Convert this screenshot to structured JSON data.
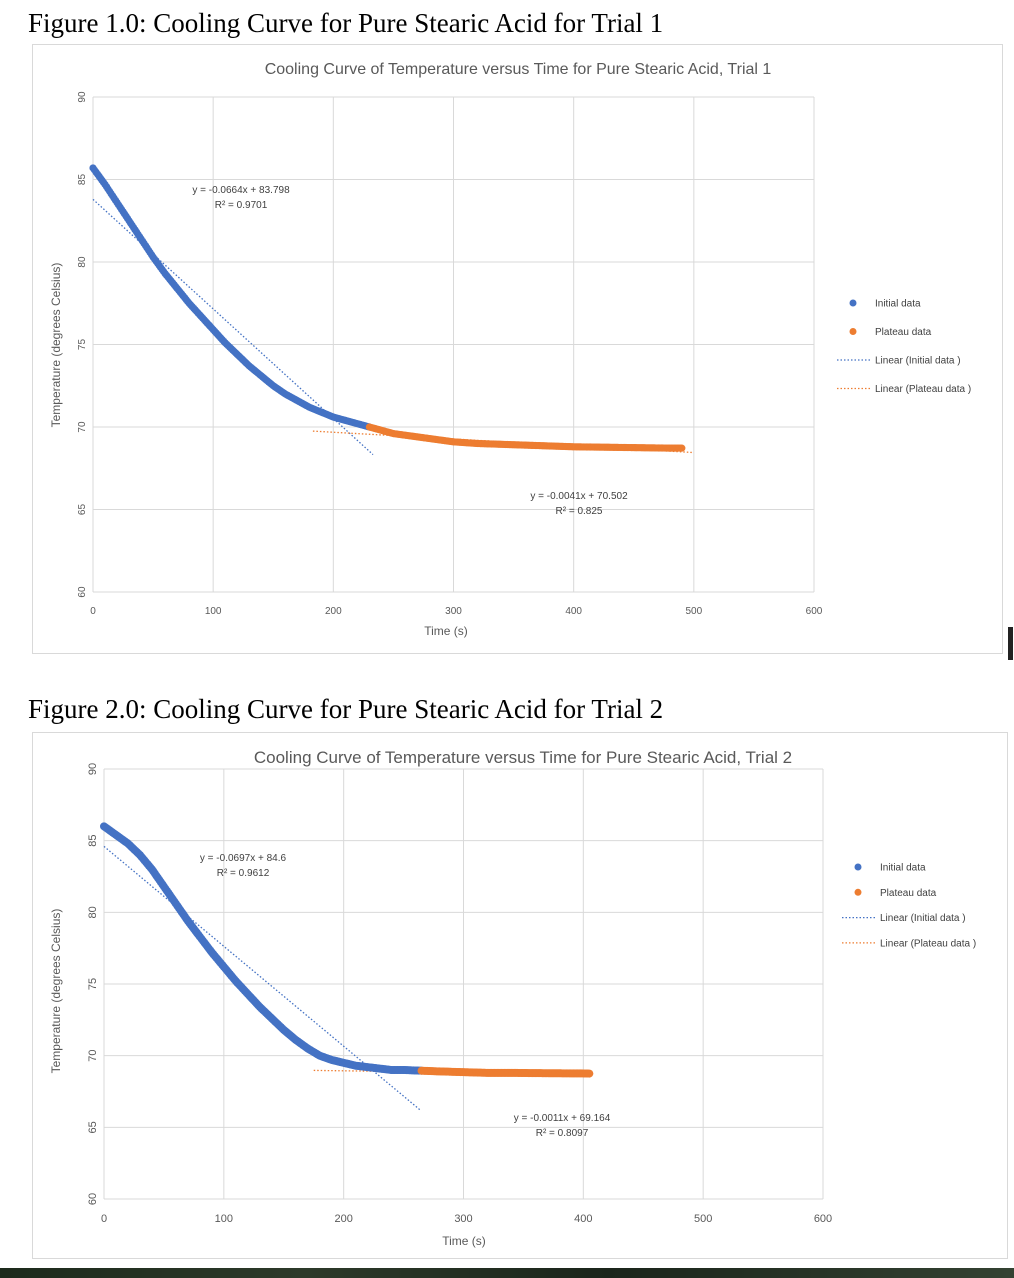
{
  "figures": [
    {
      "caption": "Figure 1.0: Cooling Curve for Pure Stearic Acid for Trial 1"
    },
    {
      "caption": "Figure 2.0: Cooling Curve for Pure Stearic Acid for Trial 2"
    }
  ],
  "chart_data": [
    {
      "type": "scatter",
      "title": "Cooling Curve of Temperature versus Time for Pure Stearic Acid, Trial 1",
      "xlabel": "Time (s)",
      "ylabel": "Temperature (degrees Celsius)",
      "xlim": [
        0,
        600
      ],
      "ylim": [
        60,
        90
      ],
      "xticks": [
        "0",
        "100",
        "200",
        "300",
        "400",
        "500",
        "600"
      ],
      "yticks": [
        "60",
        "65",
        "70",
        "75",
        "80",
        "85",
        "90"
      ],
      "grid": true,
      "legend_position": "right",
      "series": [
        {
          "name": "Initial data",
          "color": "#4472c4",
          "x": [
            0,
            10,
            20,
            30,
            40,
            50,
            60,
            70,
            80,
            90,
            100,
            110,
            120,
            130,
            140,
            150,
            160,
            170,
            180,
            190,
            200,
            210,
            220,
            230
          ],
          "y": [
            85.7,
            84.7,
            83.6,
            82.5,
            81.4,
            80.3,
            79.3,
            78.4,
            77.5,
            76.7,
            75.9,
            75.1,
            74.4,
            73.7,
            73.1,
            72.5,
            72.0,
            71.6,
            71.2,
            70.9,
            70.6,
            70.4,
            70.2,
            70.0
          ]
        },
        {
          "name": "Plateau data",
          "color": "#ed7d31",
          "x": [
            230,
            240,
            250,
            260,
            270,
            280,
            290,
            300,
            320,
            340,
            360,
            380,
            400,
            420,
            440,
            460,
            480,
            490
          ],
          "y": [
            70.0,
            69.8,
            69.6,
            69.5,
            69.4,
            69.3,
            69.2,
            69.1,
            69.0,
            68.95,
            68.9,
            68.85,
            68.8,
            68.78,
            68.76,
            68.74,
            68.72,
            68.72
          ]
        }
      ],
      "trendlines": [
        {
          "name": "Linear (Initial data )",
          "color": "#4472c4",
          "slope": -0.0664,
          "intercept": 83.798,
          "x_range": [
            0,
            233
          ],
          "equation": "y = -0.0664x + 83.798",
          "r2": "R² = 0.9701"
        },
        {
          "name": "Linear (Plateau data )",
          "color": "#ed7d31",
          "slope": -0.0041,
          "intercept": 70.502,
          "x_range": [
            183,
            500
          ],
          "equation": "y = -0.0041x + 70.502",
          "r2": "R² = 0.825"
        }
      ]
    },
    {
      "type": "scatter",
      "title": "Cooling Curve of Temperature versus Time for Pure Stearic Acid, Trial 2",
      "xlabel": "Time (s)",
      "ylabel": "Temperature (degrees Celsius)",
      "xlim": [
        0,
        600
      ],
      "ylim": [
        60,
        90
      ],
      "xticks": [
        "0",
        "100",
        "200",
        "300",
        "400",
        "500",
        "600"
      ],
      "yticks": [
        "60",
        "65",
        "70",
        "75",
        "80",
        "85",
        "90"
      ],
      "grid": true,
      "legend_position": "right",
      "series": [
        {
          "name": "Initial data",
          "color": "#4472c4",
          "x": [
            0,
            10,
            20,
            30,
            40,
            50,
            60,
            70,
            80,
            90,
            100,
            110,
            120,
            130,
            140,
            150,
            160,
            170,
            180,
            190,
            200,
            210,
            220,
            230,
            240,
            250,
            265
          ],
          "y": [
            86.0,
            85.4,
            84.8,
            84.0,
            83.0,
            81.8,
            80.6,
            79.4,
            78.3,
            77.2,
            76.2,
            75.2,
            74.3,
            73.4,
            72.6,
            71.8,
            71.1,
            70.5,
            70.0,
            69.7,
            69.5,
            69.3,
            69.2,
            69.1,
            69.0,
            69.0,
            68.95
          ]
        },
        {
          "name": "Plateau data",
          "color": "#ed7d31",
          "x": [
            265,
            280,
            300,
            320,
            340,
            360,
            380,
            400,
            405
          ],
          "y": [
            68.95,
            68.9,
            68.85,
            68.8,
            68.8,
            68.78,
            68.77,
            68.76,
            68.75
          ]
        }
      ],
      "trendlines": [
        {
          "name": "Linear (Initial data )",
          "color": "#4472c4",
          "slope": -0.0697,
          "intercept": 84.6,
          "x_range": [
            0,
            264
          ],
          "equation": "y = -0.0697x + 84.6",
          "r2": "R² = 0.9612"
        },
        {
          "name": "Linear (Plateau data )",
          "color": "#ed7d31",
          "slope": -0.0011,
          "intercept": 69.164,
          "x_range": [
            175,
            405
          ],
          "equation": "y = -0.0011x + 69.164",
          "r2": "R² = 0.8097"
        }
      ]
    }
  ]
}
